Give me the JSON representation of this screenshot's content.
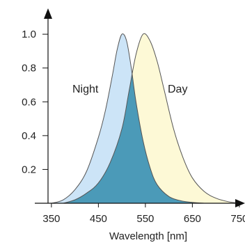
{
  "chart_data": {
    "type": "area",
    "xlabel": "Wavelength [nm]",
    "ylabel": "",
    "xlim": [
      325,
      765
    ],
    "ylim": [
      0,
      1.05
    ],
    "x_ticks": [
      350,
      450,
      550,
      650,
      750
    ],
    "y_ticks": [
      0.2,
      0.4,
      0.6,
      0.8,
      1.0
    ],
    "x_tick_labels": [
      "350",
      "450",
      "550",
      "650",
      "750"
    ],
    "y_tick_labels": [
      "0.2",
      "0.4",
      "0.6",
      "0.8",
      "1.0"
    ],
    "grid": false,
    "legend": "none",
    "overlap_color": "#4b9ab8",
    "series": [
      {
        "name": "Night",
        "color": "#cce4f7",
        "x": [
          350,
          375,
          400,
          425,
          450,
          465,
          480,
          490,
          500,
          510,
          520,
          530,
          545,
          560,
          575,
          600,
          625,
          650,
          675
        ],
        "values": [
          0.0,
          0.02,
          0.08,
          0.19,
          0.39,
          0.55,
          0.76,
          0.91,
          1.0,
          0.96,
          0.8,
          0.6,
          0.37,
          0.21,
          0.11,
          0.04,
          0.015,
          0.005,
          0.0
        ]
      },
      {
        "name": "Day",
        "color": "#fdf9d6",
        "x": [
          375,
          400,
          425,
          450,
          475,
          500,
          515,
          530,
          545,
          560,
          575,
          590,
          610,
          630,
          650,
          675,
          700,
          725,
          750
        ],
        "values": [
          0.0,
          0.02,
          0.06,
          0.12,
          0.24,
          0.44,
          0.66,
          0.88,
          1.0,
          0.96,
          0.84,
          0.67,
          0.44,
          0.27,
          0.15,
          0.07,
          0.03,
          0.01,
          0.0
        ]
      }
    ]
  }
}
